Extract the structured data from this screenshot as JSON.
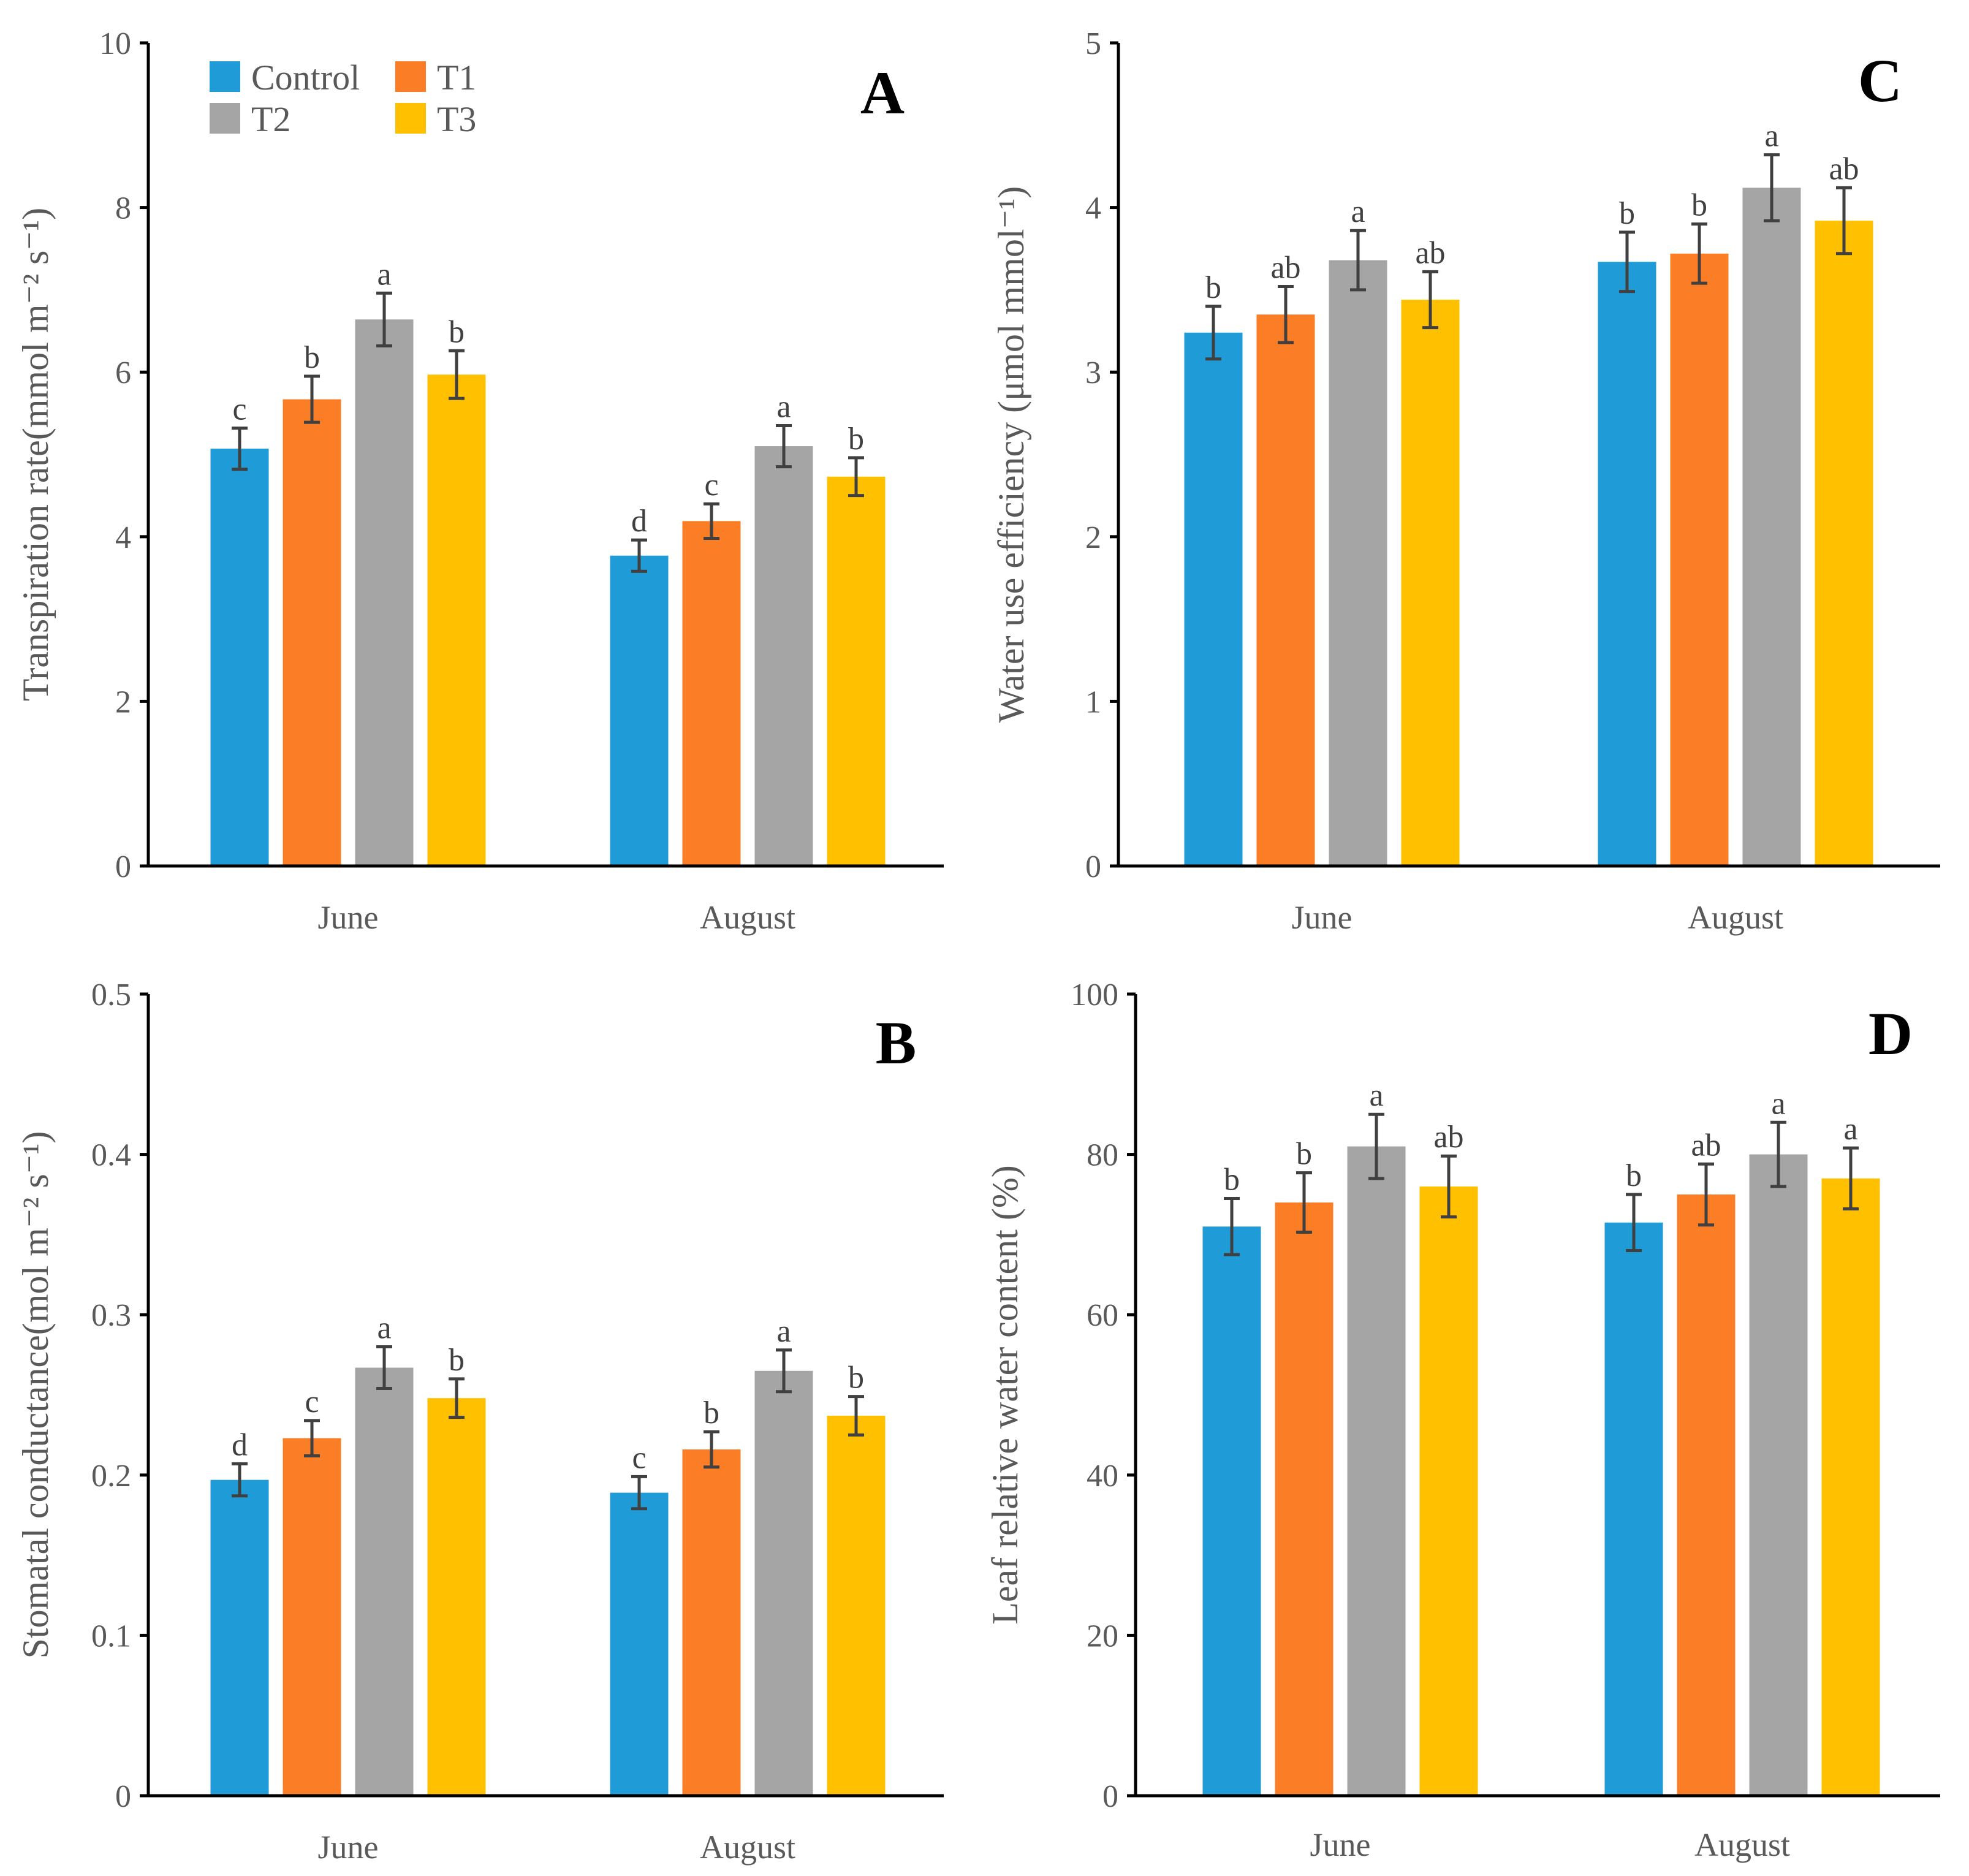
{
  "colors": {
    "Control": "#1f9bd7",
    "T1": "#fb7d26",
    "T2": "#a5a5a5",
    "T3": "#ffc000"
  },
  "legend": {
    "entries": [
      "Control",
      "T1",
      "T2",
      "T3"
    ]
  },
  "chart_data": [
    {
      "id": "A",
      "panel_label": "A",
      "type": "bar",
      "ylabel": "Transpiration rate(mmol m⁻² s⁻¹)",
      "ylim": [
        0,
        10
      ],
      "ytick_labels": [
        "0",
        "2",
        "4",
        "6",
        "8",
        "10"
      ],
      "categories": [
        "June",
        "August"
      ],
      "series": [
        {
          "name": "Control",
          "values": [
            5.07,
            3.77
          ],
          "errors": [
            0.25,
            0.19
          ],
          "letters": [
            "c",
            "d"
          ]
        },
        {
          "name": "T1",
          "values": [
            5.67,
            4.19
          ],
          "errors": [
            0.28,
            0.21
          ],
          "letters": [
            "b",
            "c"
          ]
        },
        {
          "name": "T2",
          "values": [
            6.64,
            5.1
          ],
          "errors": [
            0.32,
            0.25
          ],
          "letters": [
            "a",
            "a"
          ]
        },
        {
          "name": "T3",
          "values": [
            5.97,
            4.73
          ],
          "errors": [
            0.29,
            0.23
          ],
          "letters": [
            "b",
            "b"
          ]
        }
      ]
    },
    {
      "id": "B",
      "panel_label": "B",
      "type": "bar",
      "ylabel": "Stomatal conductance(mol m⁻² s⁻¹)",
      "ylim": [
        0,
        0.5
      ],
      "ytick_labels": [
        "0",
        "0.1",
        "0.2",
        "0.3",
        "0.4",
        "0.5"
      ],
      "categories": [
        "June",
        "August"
      ],
      "series": [
        {
          "name": "Control",
          "values": [
            0.197,
            0.189
          ],
          "errors": [
            0.01,
            0.01
          ],
          "letters": [
            "d",
            "c"
          ]
        },
        {
          "name": "T1",
          "values": [
            0.223,
            0.216
          ],
          "errors": [
            0.011,
            0.011
          ],
          "letters": [
            "c",
            "b"
          ]
        },
        {
          "name": "T2",
          "values": [
            0.267,
            0.265
          ],
          "errors": [
            0.013,
            0.013
          ],
          "letters": [
            "a",
            "a"
          ]
        },
        {
          "name": "T3",
          "values": [
            0.248,
            0.237
          ],
          "errors": [
            0.012,
            0.012
          ],
          "letters": [
            "b",
            "b"
          ]
        }
      ]
    },
    {
      "id": "C",
      "panel_label": "C",
      "type": "bar",
      "ylabel": "Water use efficiency (μmol mmol⁻¹)",
      "ylim": [
        0,
        5
      ],
      "ytick_labels": [
        "0",
        "1",
        "2",
        "3",
        "4",
        "5"
      ],
      "categories": [
        "June",
        "August"
      ],
      "series": [
        {
          "name": "Control",
          "values": [
            3.24,
            3.67
          ],
          "errors": [
            0.16,
            0.18
          ],
          "letters": [
            "b",
            "b"
          ]
        },
        {
          "name": "T1",
          "values": [
            3.35,
            3.72
          ],
          "errors": [
            0.17,
            0.18
          ],
          "letters": [
            "ab",
            "b"
          ]
        },
        {
          "name": "T2",
          "values": [
            3.68,
            4.12
          ],
          "errors": [
            0.18,
            0.2
          ],
          "letters": [
            "a",
            "a"
          ]
        },
        {
          "name": "T3",
          "values": [
            3.44,
            3.92
          ],
          "errors": [
            0.17,
            0.2
          ],
          "letters": [
            "ab",
            "ab"
          ]
        }
      ]
    },
    {
      "id": "D",
      "panel_label": "D",
      "type": "bar",
      "ylabel": "Leaf relative water content (%)",
      "ylim": [
        0,
        100
      ],
      "ytick_labels": [
        "0",
        "20",
        "40",
        "60",
        "80",
        "100"
      ],
      "categories": [
        "June",
        "August"
      ],
      "series": [
        {
          "name": "Control",
          "values": [
            71,
            71.5
          ],
          "errors": [
            3.5,
            3.5
          ],
          "letters": [
            "b",
            "b"
          ]
        },
        {
          "name": "T1",
          "values": [
            74,
            75
          ],
          "errors": [
            3.7,
            3.8
          ],
          "letters": [
            "b",
            "ab"
          ]
        },
        {
          "name": "T2",
          "values": [
            81,
            80
          ],
          "errors": [
            4.0,
            4.0
          ],
          "letters": [
            "a",
            "a"
          ]
        },
        {
          "name": "T3",
          "values": [
            76,
            77
          ],
          "errors": [
            3.8,
            3.8
          ],
          "letters": [
            "ab",
            "a"
          ]
        }
      ]
    }
  ]
}
